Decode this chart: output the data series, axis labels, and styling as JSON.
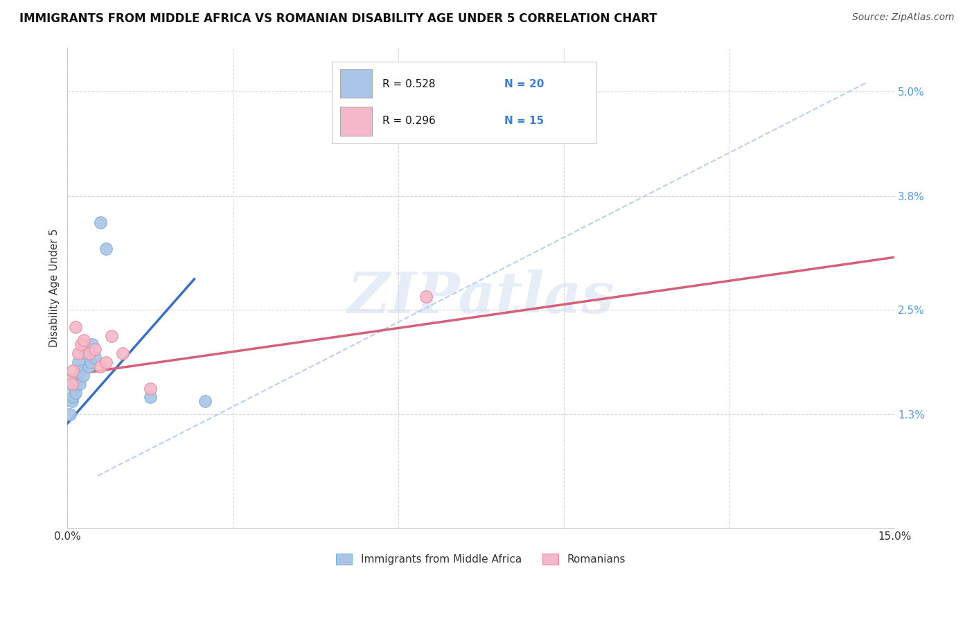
{
  "title": "IMMIGRANTS FROM MIDDLE AFRICA VS ROMANIAN DISABILITY AGE UNDER 5 CORRELATION CHART",
  "source": "Source: ZipAtlas.com",
  "ylabel": "Disability Age Under 5",
  "xlim": [
    0.0,
    15.0
  ],
  "ylim": [
    0.0,
    5.5
  ],
  "x_ticks": [
    0.0,
    3.0,
    6.0,
    9.0,
    12.0,
    15.0
  ],
  "x_tick_labels": [
    "0.0%",
    "",
    "",
    "",
    "",
    "15.0%"
  ],
  "y_ticks_right": [
    1.3,
    2.5,
    3.8,
    5.0
  ],
  "y_tick_labels_right": [
    "1.3%",
    "2.5%",
    "3.8%",
    "5.0%"
  ],
  "watermark": "ZIPatlas",
  "legend_blue_r": "R = 0.528",
  "legend_blue_n": "N = 20",
  "legend_pink_r": "R = 0.296",
  "legend_pink_n": "N = 15",
  "legend_blue_color": "#aac4e8",
  "legend_pink_color": "#f5b8c8",
  "series_blue_name": "Immigrants from Middle Africa",
  "series_pink_name": "Romanians",
  "blue_dot_color": "#aac4e8",
  "blue_dot_edge": "#7bafd4",
  "pink_dot_color": "#f5b8c8",
  "pink_dot_edge": "#e8889a",
  "blue_line_color": "#3a6fc4",
  "pink_line_color": "#d4607a",
  "dashed_line_color": "#aac4e8",
  "background_color": "#ffffff",
  "grid_color": "#cccccc",
  "blue_x": [
    0.05,
    0.08,
    0.1,
    0.12,
    0.15,
    0.18,
    0.2,
    0.22,
    0.25,
    0.28,
    0.3,
    0.35,
    0.38,
    0.42,
    0.45,
    0.5,
    0.6,
    0.7,
    1.5,
    2.5
  ],
  "blue_y": [
    1.3,
    1.45,
    1.5,
    1.6,
    1.55,
    1.7,
    1.9,
    1.65,
    1.8,
    1.75,
    2.05,
    2.0,
    1.85,
    1.9,
    2.1,
    1.95,
    3.5,
    3.2,
    1.5,
    1.45
  ],
  "pink_x": [
    0.05,
    0.08,
    0.1,
    0.15,
    0.2,
    0.25,
    0.3,
    0.4,
    0.5,
    0.6,
    0.7,
    0.8,
    1.0,
    1.5,
    6.5
  ],
  "pink_y": [
    1.7,
    1.65,
    1.8,
    2.3,
    2.0,
    2.1,
    2.15,
    2.0,
    2.05,
    1.85,
    1.9,
    2.2,
    2.0,
    1.6,
    2.65
  ],
  "blue_line_x": [
    0.0,
    2.3
  ],
  "blue_line_y": [
    1.2,
    2.85
  ],
  "pink_line_x": [
    0.0,
    15.0
  ],
  "pink_line_y": [
    1.75,
    3.1
  ],
  "dash_line_x": [
    0.55,
    14.5
  ],
  "dash_line_y": [
    0.6,
    5.1
  ]
}
